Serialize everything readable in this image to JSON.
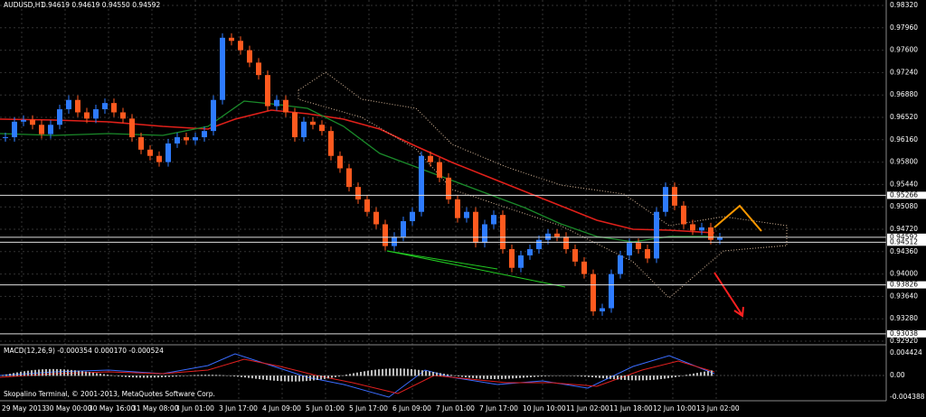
{
  "header": {
    "title": "AUDUSD,H1",
    "ohlc": "0.94619 0.94619 0.94550 0.94592"
  },
  "price_axis": {
    "ticks": [
      {
        "value": 0.9832,
        "label": "0.98320"
      },
      {
        "value": 0.9796,
        "label": "0.97960"
      },
      {
        "value": 0.976,
        "label": "0.97600"
      },
      {
        "value": 0.9724,
        "label": "0.97240"
      },
      {
        "value": 0.9688,
        "label": "0.96880"
      },
      {
        "value": 0.9652,
        "label": "0.96520"
      },
      {
        "value": 0.9616,
        "label": "0.96160"
      },
      {
        "value": 0.958,
        "label": "0.95800"
      },
      {
        "value": 0.9544,
        "label": "0.95440"
      },
      {
        "value": 0.9508,
        "label": "0.95080"
      },
      {
        "value": 0.9472,
        "label": "0.94720"
      },
      {
        "value": 0.9436,
        "label": "0.94360"
      },
      {
        "value": 0.94,
        "label": "0.94000"
      },
      {
        "value": 0.9364,
        "label": "0.93640"
      },
      {
        "value": 0.9328,
        "label": "0.93280"
      },
      {
        "value": 0.9292,
        "label": "0.92920"
      }
    ],
    "levels": [
      {
        "value": 0.95266,
        "label": "0.95266"
      },
      {
        "value": 0.94592,
        "label": "0.94592"
      },
      {
        "value": 0.94512,
        "label": "0.94512"
      },
      {
        "value": 0.93826,
        "label": "0.93826"
      },
      {
        "value": 0.93038,
        "label": "0.93038"
      }
    ]
  },
  "time_axis": {
    "labels": [
      "29 May 2013",
      "30 May 00:00",
      "30 May 16:00",
      "31 May 08:00",
      "3 Jun 01:00",
      "3 Jun 17:00",
      "4 Jun 09:00",
      "5 Jun 01:00",
      "5 Jun 17:00",
      "6 Jun 09:00",
      "7 Jun 01:00",
      "7 Jun 17:00",
      "10 Jun 10:00",
      "11 Jun 02:00",
      "11 Jun 18:00",
      "12 Jun 10:00",
      "13 Jun 02:00"
    ]
  },
  "price_series": {
    "closes": [
      0.962,
      0.9645,
      0.9648,
      0.964,
      0.9625,
      0.964,
      0.9665,
      0.968,
      0.966,
      0.965,
      0.9665,
      0.9675,
      0.966,
      0.965,
      0.962,
      0.96,
      0.959,
      0.958,
      0.961,
      0.962,
      0.9615,
      0.962,
      0.963,
      0.968,
      0.978,
      0.9775,
      0.976,
      0.974,
      0.972,
      0.967,
      0.968,
      0.966,
      0.962,
      0.9645,
      0.964,
      0.963,
      0.959,
      0.957,
      0.954,
      0.952,
      0.95,
      0.948,
      0.9445,
      0.946,
      0.9485,
      0.95,
      0.959,
      0.958,
      0.9555,
      0.952,
      0.949,
      0.95,
      0.945,
      0.948,
      0.9495,
      0.944,
      0.941,
      0.943,
      0.944,
      0.9455,
      0.9465,
      0.946,
      0.944,
      0.942,
      0.94,
      0.934,
      0.9345,
      0.94,
      0.943,
      0.945,
      0.944,
      0.9425,
      0.95,
      0.954,
      0.951,
      0.948,
      0.947,
      0.9475,
      0.9455,
      0.9459
    ]
  },
  "macd": {
    "title": "MACD(12,26,9) -0.000354 0.000170 -0.000524",
    "ticks": [
      "0.004424",
      "0.00",
      "-0.004388"
    ]
  },
  "footer": {
    "copyright": "Skopalino Terminal, © 2001-2013, MetaQuotes Software Corp."
  }
}
